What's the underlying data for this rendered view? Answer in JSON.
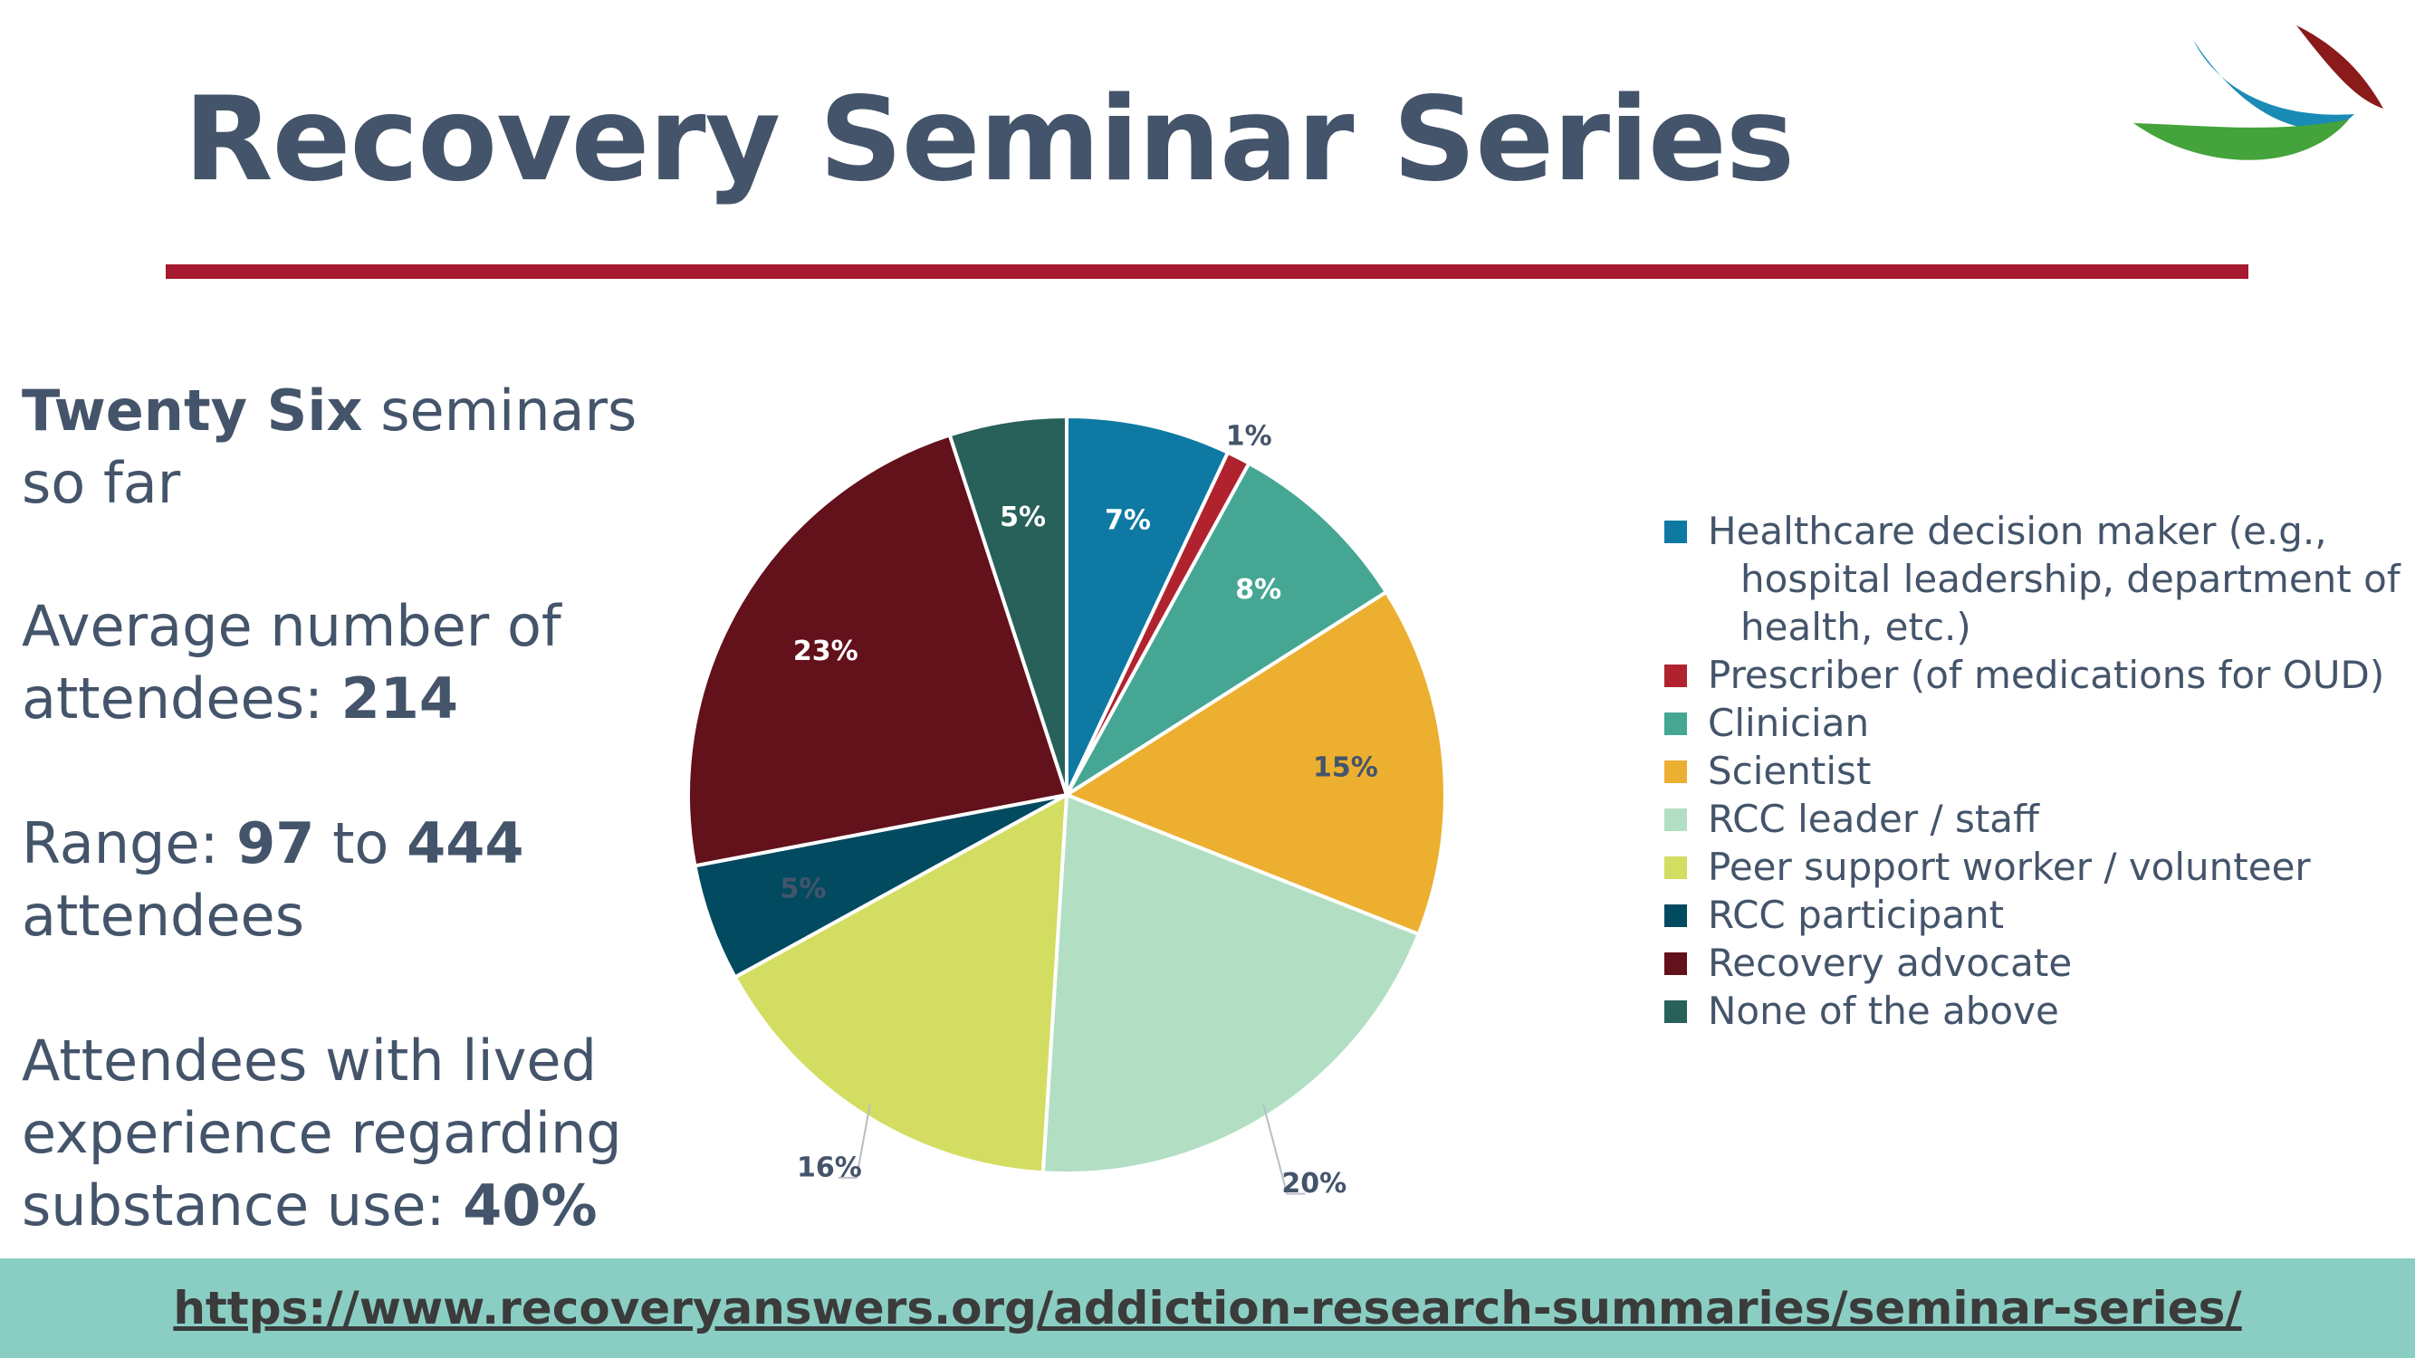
{
  "title": "Recovery Seminar Series",
  "stats": {
    "seminars": {
      "bold": "Twenty Six",
      "text": " seminars so far"
    },
    "average": {
      "text": "Average number of attendees: ",
      "bold": "214"
    },
    "range": {
      "prefix": "Range: ",
      "min": "97",
      "mid": " to ",
      "max": "444",
      "suffix": " attendees"
    },
    "lived": {
      "text": "Attendees with lived experience regarding substance use: ",
      "bold": "40%"
    }
  },
  "footer": {
    "link": "https://www.recoveryanswers.org/addiction-research-summaries/seminar-series/"
  },
  "colors": {
    "title": "#44546a",
    "rule": "#a6192e",
    "footer_band": "#8acec3",
    "logo_red": "#8b1a1a",
    "logo_blue": "#1a8bb5",
    "logo_green": "#44a33a"
  },
  "chart_data": {
    "type": "pie",
    "start_angle_deg": 0,
    "direction": "clockwise",
    "legend_position": "right",
    "slices": [
      {
        "label": "Healthcare decision maker (e.g., hospital leadership, department of health, etc.)",
        "value": 7,
        "display": "7%",
        "color": "#0e7aa3",
        "label_color": "#ffffff"
      },
      {
        "label": "Prescriber (of medications for OUD)",
        "value": 1,
        "display": "1%",
        "color": "#b0232e",
        "label_color": "#44546a"
      },
      {
        "label": "Clinician",
        "value": 8,
        "display": "8%",
        "color": "#45a694",
        "label_color": "#ffffff"
      },
      {
        "label": "Scientist",
        "value": 15,
        "display": "15%",
        "color": "#ecaf30",
        "label_color": "#44546a"
      },
      {
        "label": "RCC leader / staff",
        "value": 20,
        "display": "20%",
        "color": "#b2dfc4",
        "label_color": "#44546a"
      },
      {
        "label": "Peer support worker / volunteer",
        "value": 16,
        "display": "16%",
        "color": "#d3dd61",
        "label_color": "#44546a"
      },
      {
        "label": "RCC participant",
        "value": 5,
        "display": "5%",
        "color": "#024a60",
        "label_color": "#44546a"
      },
      {
        "label": "Recovery advocate",
        "value": 23,
        "display": "23%",
        "color": "#63111b",
        "label_color": "#ffffff"
      },
      {
        "label": "None of the above",
        "value": 5,
        "display": "5%",
        "color": "#28615a",
        "label_color": "#ffffff"
      }
    ]
  }
}
